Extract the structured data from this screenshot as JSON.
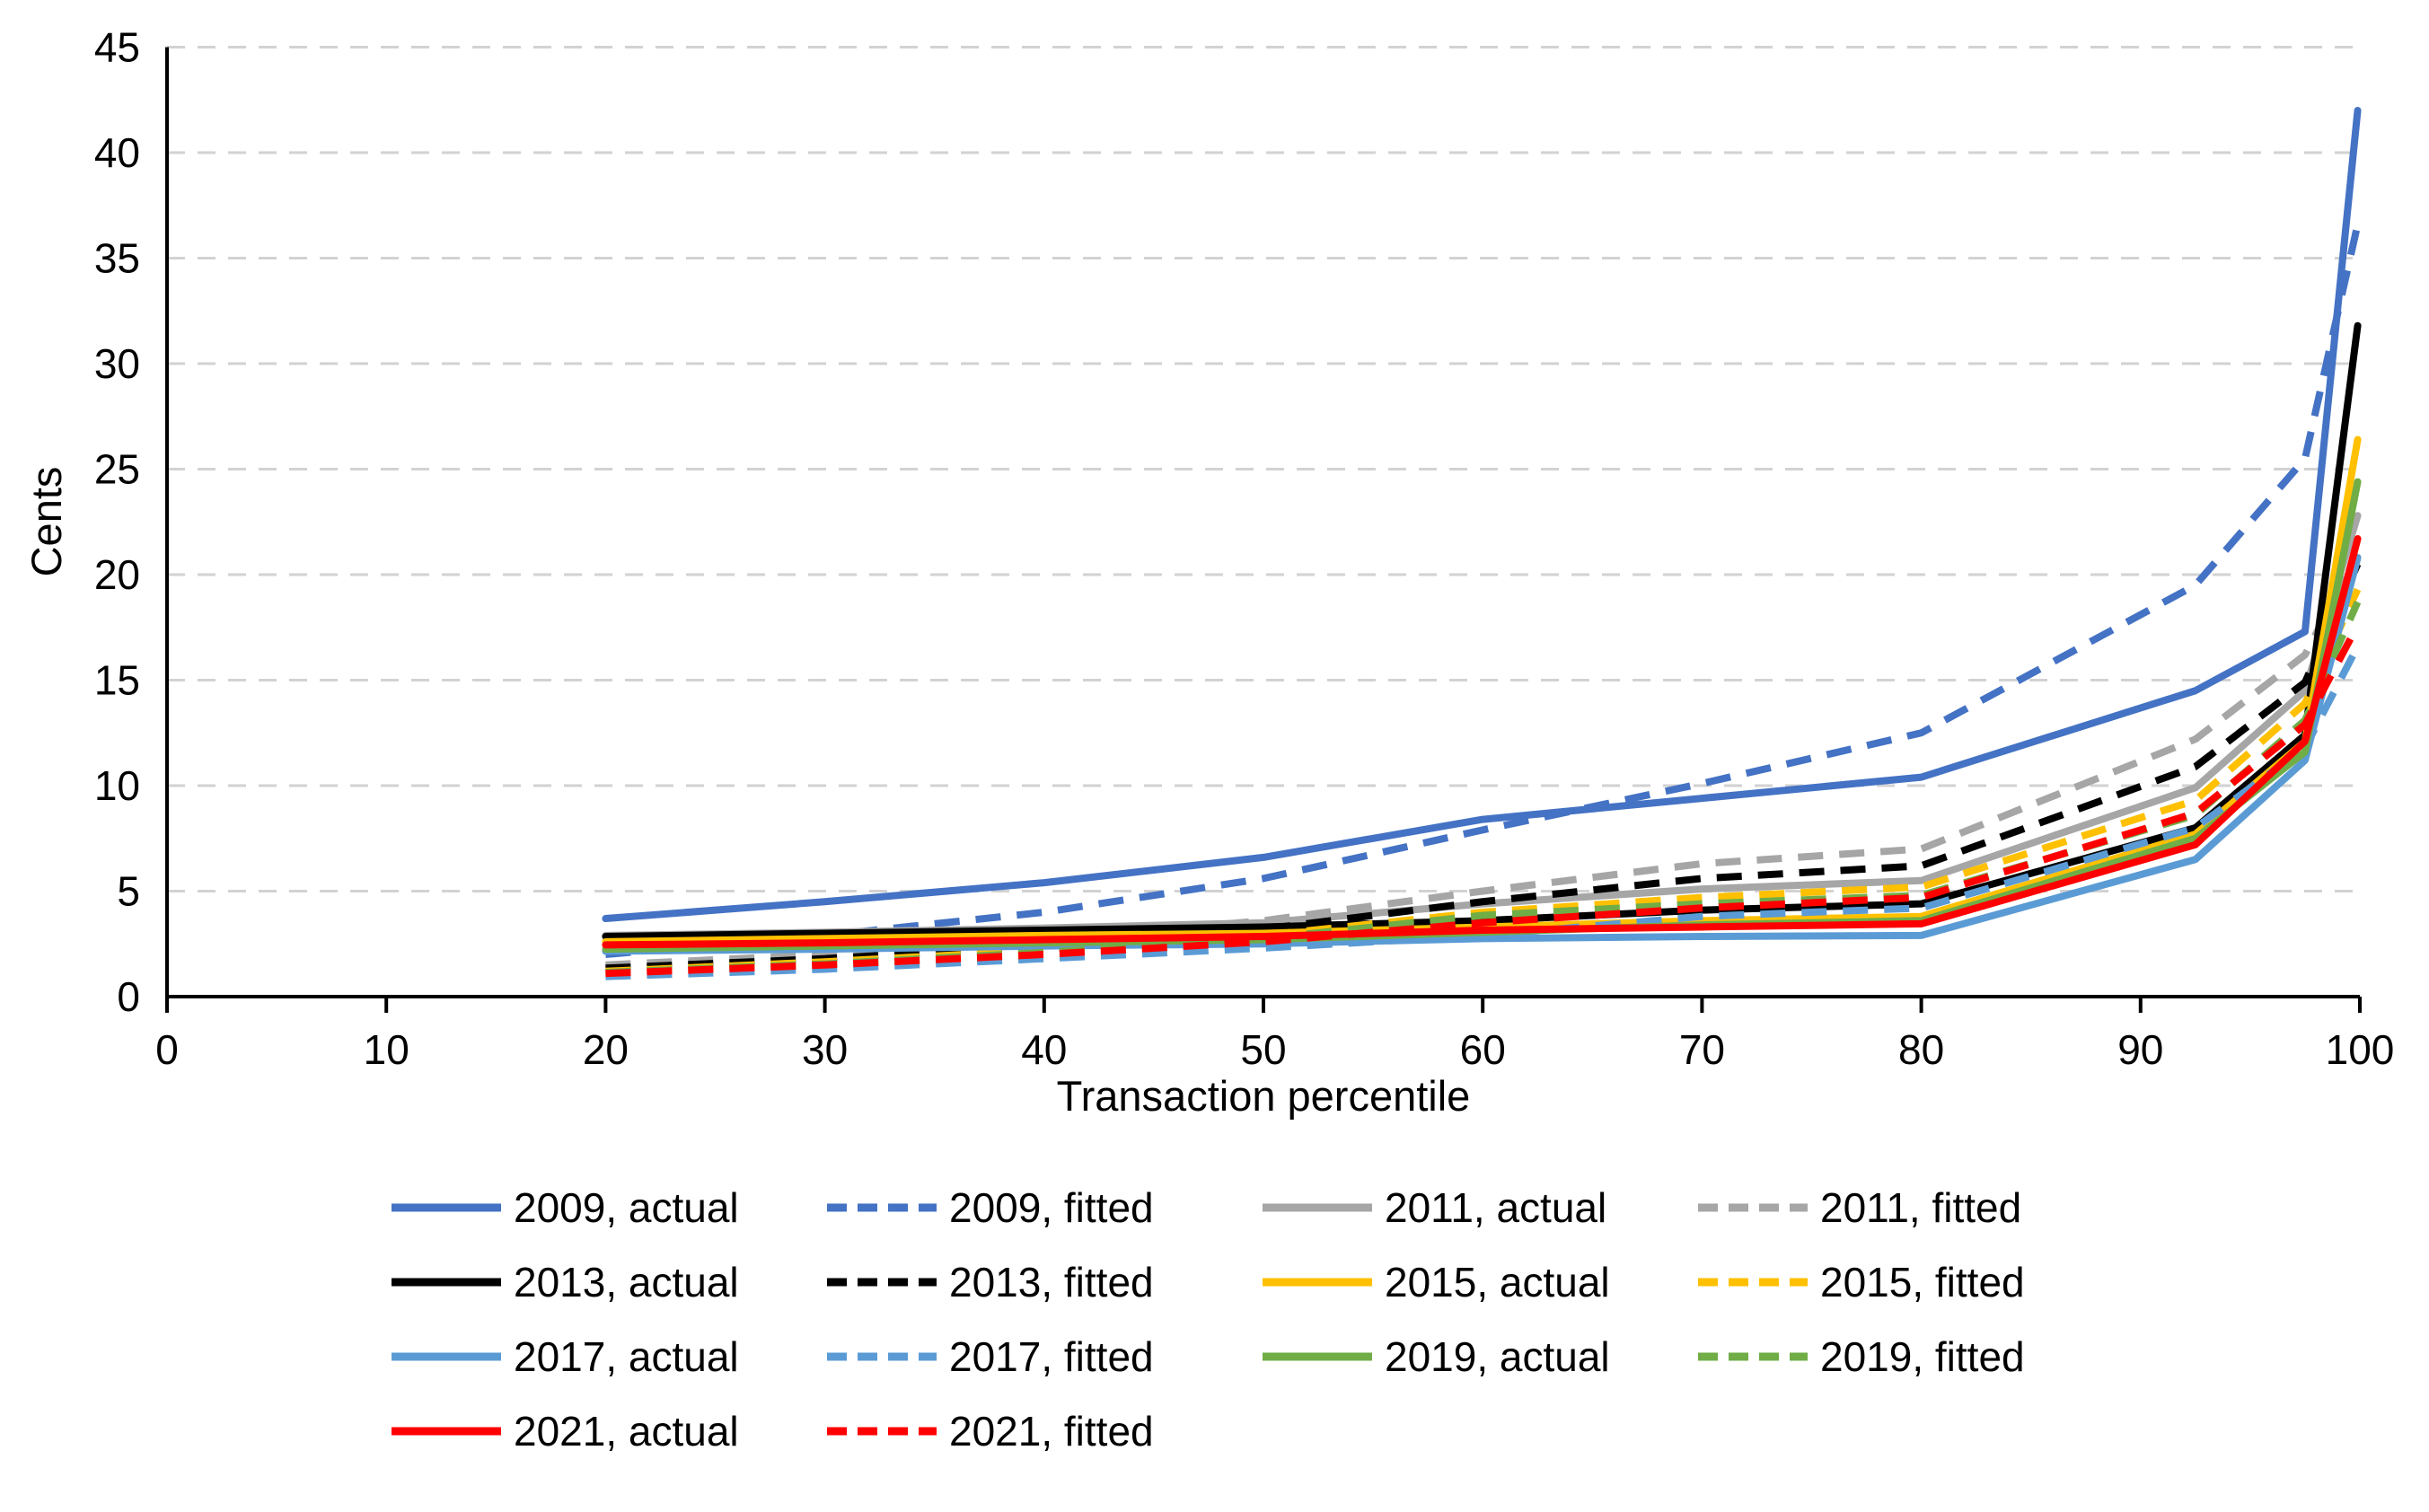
{
  "figure": {
    "background": "#FFFFFF",
    "axis_color": "#000000",
    "gridline_color": "#D2D2D2"
  },
  "chart_data": {
    "type": "line",
    "title": "",
    "xlabel": "Transaction percentile",
    "ylabel": "Cents",
    "xlim": [
      0,
      100
    ],
    "ylim": [
      0,
      45
    ],
    "xticks": [
      0,
      10,
      20,
      30,
      40,
      50,
      60,
      70,
      80,
      90,
      100
    ],
    "yticks": [
      0,
      5,
      10,
      15,
      20,
      25,
      30,
      35,
      40,
      45
    ],
    "grid": "horizontal-dashed",
    "legend_position": "bottom",
    "x": [
      20,
      30,
      40,
      50,
      60,
      70,
      80,
      92.5,
      97.5,
      99.9
    ],
    "series": [
      {
        "name": "2009, actual",
        "color": "#4472C4",
        "style": "solid",
        "values": [
          3.7,
          4.5,
          5.4,
          6.6,
          8.4,
          9.4,
          10.4,
          14.5,
          17.3,
          42.0
        ]
      },
      {
        "name": "2009, fitted",
        "color": "#4472C4",
        "style": "dashed",
        "values": [
          2.0,
          2.9,
          4.0,
          5.6,
          7.9,
          10.1,
          12.5,
          19.5,
          25.5,
          36.6
        ]
      },
      {
        "name": "2011, actual",
        "color": "#A6A6A6",
        "style": "solid",
        "values": [
          2.9,
          3.05,
          3.25,
          3.5,
          4.4,
          5.1,
          5.5,
          9.9,
          14.5,
          22.8
        ]
      },
      {
        "name": "2011, fitted",
        "color": "#A6A6A6",
        "style": "dashed",
        "values": [
          1.5,
          2.0,
          2.7,
          3.6,
          5.0,
          6.3,
          7.0,
          12.2,
          16.2,
          21.0
        ]
      },
      {
        "name": "2013, actual",
        "color": "#000000",
        "style": "solid",
        "values": [
          2.85,
          3.0,
          3.15,
          3.3,
          3.6,
          4.1,
          4.4,
          8.0,
          12.4,
          31.8
        ]
      },
      {
        "name": "2013, fitted",
        "color": "#000000",
        "style": "dashed",
        "values": [
          1.35,
          1.8,
          2.4,
          3.2,
          4.5,
          5.6,
          6.2,
          10.9,
          14.9,
          20.5
        ]
      },
      {
        "name": "2015, actual",
        "color": "#FFC000",
        "style": "solid",
        "values": [
          2.6,
          2.75,
          2.9,
          3.0,
          3.3,
          3.6,
          3.8,
          7.7,
          12.1,
          26.4
        ]
      },
      {
        "name": "2015, fitted",
        "color": "#FFC000",
        "style": "dashed",
        "values": [
          1.2,
          1.65,
          2.2,
          2.9,
          4.0,
          4.7,
          5.2,
          9.3,
          13.9,
          19.3
        ]
      },
      {
        "name": "2017, actual",
        "color": "#5B9BD5",
        "style": "solid",
        "values": [
          2.15,
          2.25,
          2.4,
          2.5,
          2.75,
          2.85,
          2.9,
          6.5,
          11.2,
          20.8
        ]
      },
      {
        "name": "2017, fitted",
        "color": "#5B9BD5",
        "style": "dashed",
        "values": [
          0.95,
          1.3,
          1.8,
          2.3,
          2.9,
          3.8,
          4.2,
          8.0,
          11.8,
          16.6
        ]
      },
      {
        "name": "2019, actual",
        "color": "#70AD47",
        "style": "solid",
        "values": [
          2.25,
          2.4,
          2.55,
          2.7,
          3.05,
          3.4,
          3.6,
          7.5,
          11.6,
          24.4
        ]
      },
      {
        "name": "2019, fitted",
        "color": "#70AD47",
        "style": "dashed",
        "values": [
          1.15,
          1.55,
          2.1,
          2.75,
          3.85,
          4.4,
          4.8,
          8.6,
          13.1,
          18.7
        ]
      },
      {
        "name": "2021, actual",
        "color": "#FF0000",
        "style": "solid",
        "values": [
          2.45,
          2.55,
          2.7,
          2.85,
          3.15,
          3.3,
          3.45,
          7.2,
          12.1,
          21.7
        ]
      },
      {
        "name": "2021, fitted",
        "color": "#FF0000",
        "style": "dashed",
        "values": [
          1.1,
          1.5,
          2.0,
          2.6,
          3.5,
          4.2,
          4.7,
          8.7,
          12.9,
          17.6
        ]
      }
    ]
  }
}
